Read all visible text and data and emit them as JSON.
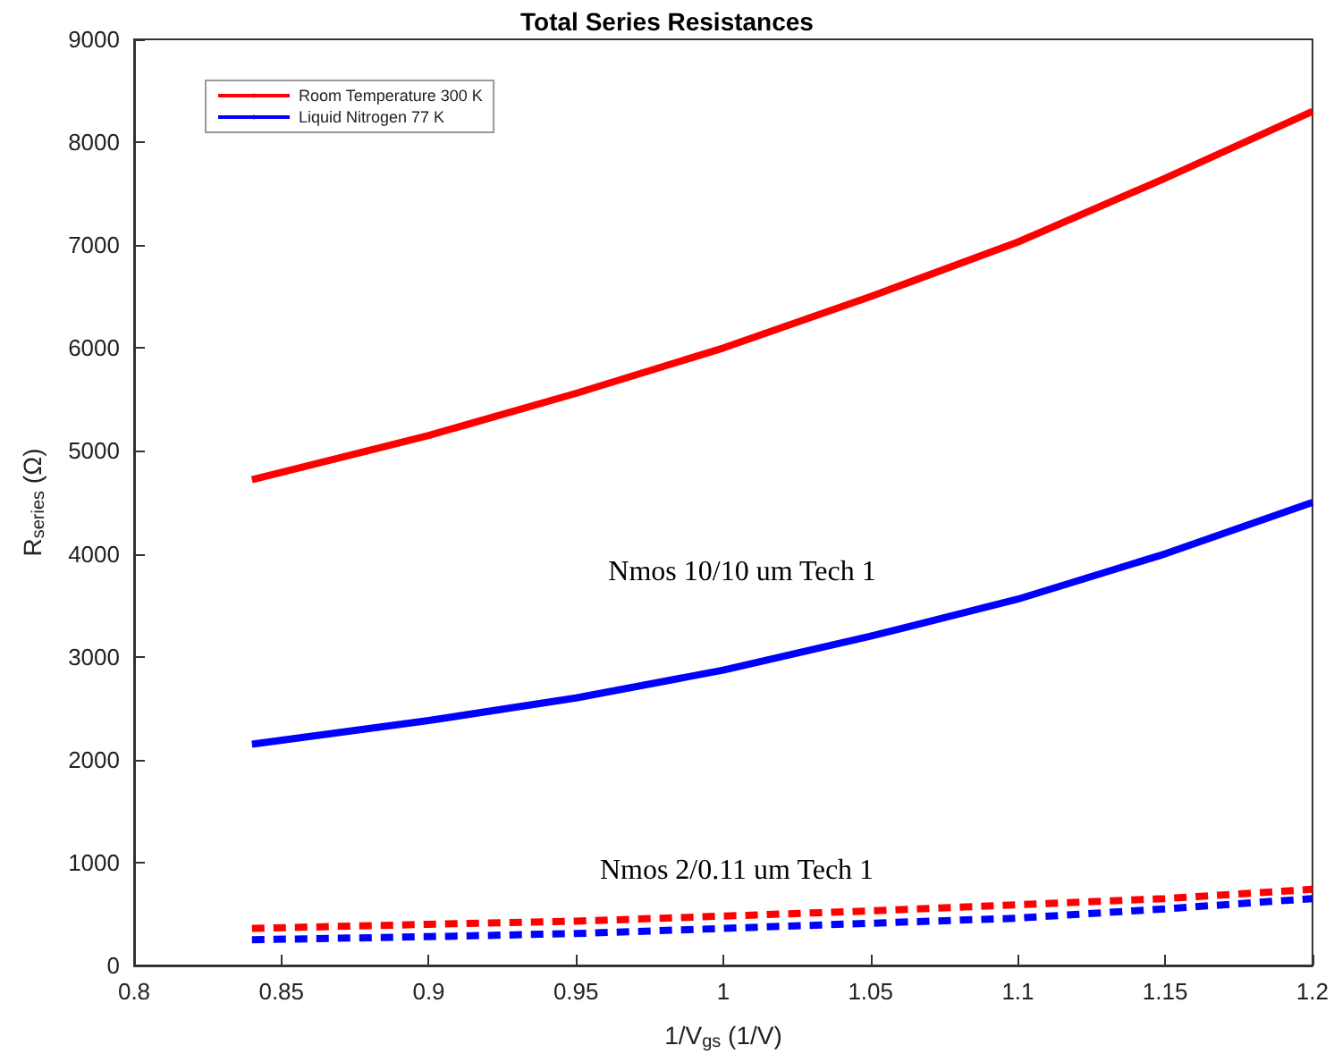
{
  "chart_data": {
    "type": "line",
    "title": "Total Series Resistances",
    "xlabel": "1/V$_{gs}$ (1/V)",
    "ylabel": "R$_{series}$ (Ω)",
    "xlim": [
      0.8,
      1.2
    ],
    "xticks": [
      0.8,
      0.85,
      0.9,
      0.95,
      1,
      1.05,
      1.1,
      1.15,
      1.2
    ],
    "ylim": [
      0,
      9000
    ],
    "yticks": [
      0,
      1000,
      2000,
      3000,
      4000,
      5000,
      6000,
      7000,
      8000,
      9000
    ],
    "x": [
      0.84,
      0.9,
      0.95,
      1.0,
      1.05,
      1.1,
      1.15,
      1.2
    ],
    "grid": false,
    "legend": "top left",
    "marker": "none",
    "series": [
      {
        "name": "Room Temperature 300 K",
        "color": "#ff0000",
        "line_style": "solid",
        "values": [
          4720,
          5150,
          5560,
          6000,
          6500,
          7030,
          7650,
          8300
        ]
      },
      {
        "name": "Liquid Nitrogen 77 K",
        "color": "#0000ff",
        "line_style": "solid",
        "values": [
          2150,
          2380,
          2600,
          2870,
          3200,
          3560,
          4000,
          4500
        ]
      },
      {
        "color": "#ff0000",
        "line_style": "dashed",
        "values": [
          360,
          400,
          430,
          480,
          530,
          590,
          650,
          740
        ]
      },
      {
        "color": "#0000ff",
        "line_style": "dashed",
        "values": [
          250,
          280,
          310,
          360,
          410,
          460,
          550,
          650
        ]
      }
    ],
    "annotations": [
      "Nmos 10/10 um Tech 1",
      "Nmos 2/0.11 um Tech 1"
    ]
  }
}
